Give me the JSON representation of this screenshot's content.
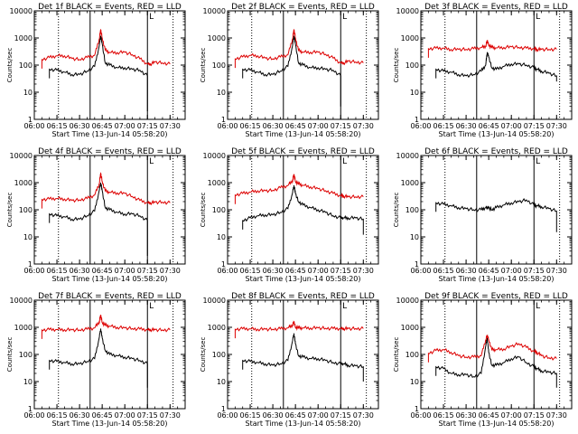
{
  "chart_data": {
    "type": "line",
    "ylabel": "Counts/sec",
    "xlabel": "Start Time (13-Jun-14 05:58:20)",
    "x_unit": "minutes after 06:00 UT",
    "xlim": [
      0,
      100
    ],
    "ylim": [
      1,
      10000
    ],
    "y_scale": "log",
    "x_ticks": [
      0,
      15,
      30,
      45,
      60,
      75,
      90
    ],
    "x_tick_labels": [
      "06:00",
      "06:15",
      "06:30",
      "06:45",
      "07:00",
      "07:15",
      "07:30"
    ],
    "y_ticks": [
      1,
      10,
      100,
      1000,
      10000
    ],
    "y_tick_labels": [
      "1",
      "10",
      "100",
      "1000",
      "10000"
    ],
    "marker_solid": [
      37,
      75
    ],
    "marker_dotted": [
      16,
      92
    ],
    "marker_letters": [
      {
        "x": 75.5,
        "text": "L"
      }
    ],
    "colors": {
      "events": "#000000",
      "lld": "#dd0000"
    },
    "legend": "BLACK = Events, RED = LLD",
    "x": [
      0,
      5,
      10,
      15,
      20,
      25,
      30,
      35,
      37,
      40,
      43,
      44,
      45,
      47,
      50,
      55,
      60,
      65,
      70,
      75,
      77,
      80,
      85,
      90,
      95,
      100
    ],
    "panels": [
      {
        "title": "Det 1f BLACK = Events, RED = LLD",
        "events": {
          "start": 7,
          "end": 80,
          "values": [
            null,
            null,
            70,
            65,
            55,
            45,
            45,
            60,
            null,
            90,
            500,
            1200,
            600,
            120,
            100,
            80,
            80,
            70,
            65,
            40,
            null,
            null,
            null,
            null,
            null,
            null
          ],
          "drop": 2
        },
        "lld": {
          "start": 5,
          "end": 93,
          "values": [
            null,
            160,
            190,
            220,
            220,
            175,
            160,
            190,
            null,
            230,
            900,
            2000,
            1000,
            360,
            290,
            290,
            300,
            240,
            170,
            110,
            110,
            130,
            120,
            110,
            null,
            null
          ]
        }
      },
      {
        "title": "Det 2f BLACK = Events, RED = LLD",
        "events": {
          "start": 7,
          "end": 80,
          "values": [
            null,
            null,
            70,
            65,
            55,
            45,
            45,
            60,
            null,
            90,
            500,
            1200,
            600,
            120,
            100,
            80,
            80,
            70,
            65,
            40,
            null,
            null,
            null,
            null,
            null,
            null
          ],
          "drop": 3
        },
        "lld": {
          "start": 5,
          "end": 93,
          "values": [
            null,
            170,
            200,
            230,
            220,
            180,
            170,
            200,
            null,
            240,
            900,
            2000,
            1000,
            350,
            300,
            300,
            300,
            250,
            180,
            120,
            120,
            140,
            130,
            120,
            null,
            null
          ]
        }
      },
      {
        "title": "Det 3f BLACK = Events, RED = LLD",
        "events": {
          "start": 7,
          "end": 95,
          "values": [
            null,
            null,
            70,
            60,
            55,
            45,
            40,
            45,
            null,
            60,
            100,
            300,
            200,
            80,
            70,
            90,
            110,
            110,
            100,
            80,
            70,
            60,
            50,
            40,
            null,
            null
          ],
          "drop": 25
        },
        "lld": {
          "start": 5,
          "end": 95,
          "values": [
            null,
            400,
            420,
            420,
            380,
            380,
            380,
            400,
            null,
            440,
            500,
            800,
            550,
            450,
            430,
            450,
            470,
            450,
            420,
            400,
            380,
            380,
            380,
            380,
            null,
            null
          ]
        }
      },
      {
        "title": "Det 4f BLACK = Events, RED = LLD",
        "events": {
          "start": 7,
          "end": 80,
          "values": [
            null,
            null,
            70,
            60,
            55,
            45,
            45,
            60,
            null,
            90,
            500,
            1000,
            500,
            120,
            100,
            80,
            70,
            70,
            60,
            40,
            null,
            null,
            null,
            null,
            null,
            null
          ],
          "drop": 2
        },
        "lld": {
          "start": 5,
          "end": 93,
          "values": [
            null,
            240,
            250,
            260,
            250,
            220,
            230,
            260,
            null,
            350,
            900,
            2200,
            1100,
            500,
            440,
            420,
            400,
            310,
            220,
            180,
            180,
            190,
            190,
            180,
            null,
            null
          ]
        }
      },
      {
        "title": "Det 5f BLACK = Events, RED = LLD",
        "events": {
          "start": 7,
          "end": 93,
          "values": [
            null,
            null,
            40,
            50,
            60,
            65,
            65,
            80,
            null,
            110,
            400,
            800,
            400,
            200,
            150,
            120,
            100,
            80,
            60,
            50,
            50,
            50,
            50,
            45,
            null,
            null
          ],
          "drop": 12
        },
        "lld": {
          "start": 5,
          "end": 93,
          "values": [
            null,
            350,
            400,
            450,
            500,
            500,
            520,
            650,
            null,
            780,
            1200,
            2000,
            1100,
            900,
            800,
            700,
            600,
            500,
            400,
            330,
            320,
            300,
            300,
            300,
            null,
            null
          ]
        }
      },
      {
        "title": "Det 6f BLACK = Events, RED = LLD",
        "events": {
          "start": 7,
          "end": 93,
          "values": [
            null,
            null,
            180,
            160,
            140,
            120,
            110,
            100,
            null,
            100,
            120,
            120,
            120,
            100,
            120,
            150,
            180,
            200,
            230,
            150,
            140,
            130,
            110,
            90,
            null,
            null
          ],
          "drop": 15
        },
        "lld": null
      },
      {
        "title": "Det 7f BLACK = Events, RED = LLD",
        "events": {
          "start": 7,
          "end": 80,
          "values": [
            null,
            null,
            60,
            55,
            50,
            45,
            45,
            55,
            null,
            70,
            400,
            900,
            400,
            140,
            100,
            90,
            80,
            70,
            60,
            45,
            null,
            null,
            null,
            null,
            null,
            null
          ],
          "drop": 6
        },
        "lld": {
          "start": 5,
          "end": 93,
          "values": [
            null,
            800,
            820,
            830,
            820,
            800,
            800,
            850,
            null,
            950,
            1600,
            2800,
            1500,
            1200,
            1100,
            1000,
            950,
            900,
            860,
            820,
            820,
            810,
            800,
            800,
            null,
            null
          ]
        }
      },
      {
        "title": "Det 8f BLACK = Events, RED = LLD",
        "events": {
          "start": 7,
          "end": 93,
          "values": [
            null,
            null,
            60,
            55,
            50,
            45,
            40,
            45,
            null,
            60,
            300,
            600,
            250,
            90,
            80,
            70,
            70,
            60,
            50,
            45,
            45,
            40,
            38,
            35,
            null,
            null
          ],
          "drop": 10
        },
        "lld": {
          "start": 5,
          "end": 93,
          "values": [
            null,
            850,
            880,
            880,
            850,
            850,
            850,
            880,
            null,
            950,
            1200,
            1600,
            1000,
            950,
            950,
            950,
            950,
            920,
            900,
            900,
            900,
            900,
            900,
            900,
            null,
            null
          ]
        }
      },
      {
        "title": "Det 9f BLACK = Events, RED = LLD",
        "events": {
          "start": 7,
          "end": 93,
          "values": [
            null,
            null,
            35,
            30,
            20,
            18,
            18,
            15,
            null,
            20,
            200,
            400,
            120,
            40,
            40,
            50,
            70,
            80,
            50,
            35,
            30,
            25,
            22,
            20,
            null,
            null
          ],
          "drop": 6
        },
        "lld": {
          "start": 5,
          "end": 93,
          "values": [
            null,
            110,
            140,
            150,
            120,
            90,
            80,
            80,
            null,
            90,
            350,
            500,
            350,
            150,
            150,
            160,
            200,
            250,
            180,
            130,
            120,
            90,
            75,
            70,
            null,
            null
          ]
        }
      }
    ],
    "panel_markers": [
      {
        "dotted_right": 92,
        "letter": "L"
      },
      {
        "dotted_right": 92,
        "letter": "L"
      },
      {
        "dotted_right": 92,
        "letter": "L"
      },
      {
        "dotted_right": 92,
        "letter": "L"
      },
      {
        "dotted_right": 92,
        "letter": "L"
      },
      {
        "dotted_right": 92,
        "letter": "L"
      },
      {
        "dotted_right": 92,
        "letter": "L"
      },
      {
        "dotted_right": 92,
        "letter": "L"
      },
      {
        "dotted_right": 92,
        "letter": "L"
      }
    ]
  }
}
